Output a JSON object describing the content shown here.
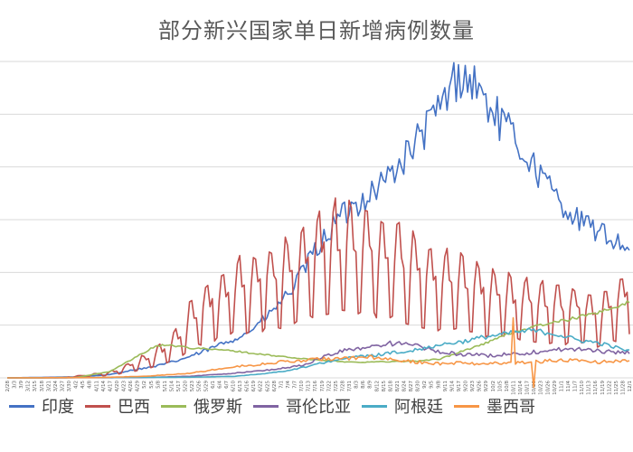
{
  "chart_data": {
    "type": "line",
    "title": "部分新兴国家单日新增病例数量",
    "grid": true,
    "legend_position": "bottom",
    "ylim": [
      0,
      100000
    ],
    "x_tick_labels": [
      "2/28",
      "3/3",
      "3/9",
      "3/12",
      "3/15",
      "3/18",
      "3/21",
      "3/24",
      "3/27",
      "3/30",
      "4/2",
      "4/5",
      "4/8",
      "4/11",
      "4/14",
      "4/17",
      "4/20",
      "4/23",
      "4/26",
      "4/29",
      "5/2",
      "5/5",
      "5/8",
      "5/11",
      "5/14",
      "5/17",
      "5/20",
      "5/23",
      "5/26",
      "5/29",
      "6/1",
      "6/4",
      "6/7",
      "6/10",
      "6/13",
      "6/16",
      "6/19",
      "6/22",
      "6/25",
      "6/28",
      "7/1",
      "7/4",
      "7/7",
      "7/10",
      "7/13",
      "7/16",
      "7/19",
      "7/22",
      "7/25",
      "7/28",
      "7/31",
      "8/3",
      "8/6",
      "8/9",
      "8/12",
      "8/15",
      "8/18",
      "8/21",
      "8/24",
      "8/27",
      "8/30",
      "9/2",
      "9/5",
      "9/8",
      "9/11",
      "9/14",
      "9/17",
      "9/20",
      "9/23",
      "9/26",
      "9/29",
      "10/2",
      "10/5",
      "10/8",
      "10/11",
      "10/14",
      "10/17",
      "10/20",
      "10/23",
      "10/26",
      "10/29",
      "11/1",
      "11/4",
      "11/7",
      "11/10",
      "11/13",
      "11/16",
      "11/19",
      "11/22",
      "11/25",
      "11/28",
      "12/1"
    ],
    "x_tick_step_days": 3,
    "series": [
      {
        "name": "印度",
        "color": "#4472C4",
        "noise": 0.08,
        "keypoints": [
          [
            0,
            0
          ],
          [
            30,
            300
          ],
          [
            45,
            1000
          ],
          [
            55,
            2500
          ],
          [
            64,
            3500
          ],
          [
            75,
            5500
          ],
          [
            85,
            8000
          ],
          [
            95,
            11000
          ],
          [
            105,
            14000
          ],
          [
            115,
            20000
          ],
          [
            125,
            28000
          ],
          [
            135,
            40000
          ],
          [
            145,
            50000
          ],
          [
            155,
            56000
          ],
          [
            165,
            62000
          ],
          [
            175,
            70000
          ],
          [
            185,
            80000
          ],
          [
            192,
            88000
          ],
          [
            198,
            96000
          ],
          [
            205,
            93000
          ],
          [
            212,
            85000
          ],
          [
            220,
            78000
          ],
          [
            230,
            68000
          ],
          [
            240,
            58000
          ],
          [
            250,
            50000
          ],
          [
            260,
            46000
          ],
          [
            270,
            42000
          ],
          [
            280,
            40000
          ],
          [
            295,
            36000
          ]
        ]
      },
      {
        "name": "巴西",
        "color": "#C0504D",
        "noise": 0.05,
        "weekly_spike": 0.5,
        "keypoints": [
          [
            0,
            0
          ],
          [
            25,
            100
          ],
          [
            45,
            1500
          ],
          [
            55,
            4000
          ],
          [
            65,
            7000
          ],
          [
            75,
            12000
          ],
          [
            80,
            18000
          ],
          [
            90,
            24000
          ],
          [
            100,
            28000
          ],
          [
            110,
            30000
          ],
          [
            120,
            32000
          ],
          [
            130,
            36000
          ],
          [
            140,
            42000
          ],
          [
            150,
            42000
          ],
          [
            160,
            40000
          ],
          [
            170,
            38000
          ],
          [
            180,
            34000
          ],
          [
            190,
            30000
          ],
          [
            200,
            30000
          ],
          [
            210,
            27000
          ],
          [
            220,
            25000
          ],
          [
            230,
            24000
          ],
          [
            240,
            22000
          ],
          [
            250,
            22000
          ],
          [
            260,
            20000
          ],
          [
            270,
            25000
          ],
          [
            280,
            32000
          ],
          [
            295,
            38000
          ]
        ]
      },
      {
        "name": "俄罗斯",
        "color": "#9BBB59",
        "noise": 0.03,
        "keypoints": [
          [
            0,
            0
          ],
          [
            30,
            100
          ],
          [
            45,
            2000
          ],
          [
            55,
            6000
          ],
          [
            65,
            10000
          ],
          [
            70,
            10500
          ],
          [
            80,
            9500
          ],
          [
            90,
            9000
          ],
          [
            100,
            8500
          ],
          [
            110,
            7500
          ],
          [
            120,
            6800
          ],
          [
            130,
            6000
          ],
          [
            140,
            5500
          ],
          [
            150,
            5000
          ],
          [
            160,
            5000
          ],
          [
            170,
            5200
          ],
          [
            180,
            5300
          ],
          [
            190,
            6000
          ],
          [
            200,
            8500
          ],
          [
            210,
            11000
          ],
          [
            220,
            14000
          ],
          [
            230,
            16000
          ],
          [
            240,
            17500
          ],
          [
            250,
            19000
          ],
          [
            260,
            21000
          ],
          [
            270,
            23000
          ],
          [
            280,
            26000
          ],
          [
            295,
            27000
          ]
        ]
      },
      {
        "name": "哥伦比亚",
        "color": "#8064A2",
        "noise": 0.08,
        "keypoints": [
          [
            0,
            0
          ],
          [
            60,
            100
          ],
          [
            80,
            500
          ],
          [
            100,
            1500
          ],
          [
            115,
            2500
          ],
          [
            130,
            4000
          ],
          [
            140,
            7000
          ],
          [
            150,
            9000
          ],
          [
            160,
            10000
          ],
          [
            170,
            11000
          ],
          [
            180,
            10000
          ],
          [
            190,
            8000
          ],
          [
            200,
            7500
          ],
          [
            210,
            7000
          ],
          [
            220,
            7500
          ],
          [
            230,
            8000
          ],
          [
            240,
            9000
          ],
          [
            250,
            9000
          ],
          [
            260,
            8500
          ],
          [
            270,
            8000
          ],
          [
            280,
            8500
          ],
          [
            295,
            9000
          ]
        ]
      },
      {
        "name": "阿根廷",
        "color": "#4BACC6",
        "noise": 0.06,
        "keypoints": [
          [
            0,
            0
          ],
          [
            80,
            200
          ],
          [
            100,
            500
          ],
          [
            115,
            1500
          ],
          [
            125,
            2500
          ],
          [
            140,
            5000
          ],
          [
            150,
            6500
          ],
          [
            160,
            7000
          ],
          [
            170,
            8000
          ],
          [
            180,
            9000
          ],
          [
            190,
            10500
          ],
          [
            200,
            11500
          ],
          [
            210,
            13000
          ],
          [
            220,
            14000
          ],
          [
            230,
            15000
          ],
          [
            240,
            14000
          ],
          [
            250,
            12000
          ],
          [
            260,
            11000
          ],
          [
            270,
            9000
          ],
          [
            280,
            7000
          ],
          [
            295,
            7500
          ]
        ]
      },
      {
        "name": "墨西哥",
        "color": "#F79646",
        "noise": 0.1,
        "keypoints": [
          [
            0,
            0
          ],
          [
            40,
            100
          ],
          [
            60,
            500
          ],
          [
            80,
            1500
          ],
          [
            100,
            3500
          ],
          [
            120,
            5000
          ],
          [
            140,
            6000
          ],
          [
            160,
            6500
          ],
          [
            170,
            5500
          ],
          [
            180,
            5000
          ],
          [
            190,
            4500
          ],
          [
            200,
            4800
          ],
          [
            210,
            4200
          ],
          [
            215,
            4800
          ],
          [
            220,
            4700
          ],
          [
            230,
            5000
          ],
          [
            240,
            5500
          ],
          [
            250,
            5500
          ],
          [
            260,
            5000
          ],
          [
            270,
            5500
          ],
          [
            280,
            6500
          ],
          [
            295,
            8000
          ]
        ],
        "anomalies": [
          [
            222,
            19000
          ],
          [
            231,
            -3000
          ]
        ]
      }
    ]
  }
}
